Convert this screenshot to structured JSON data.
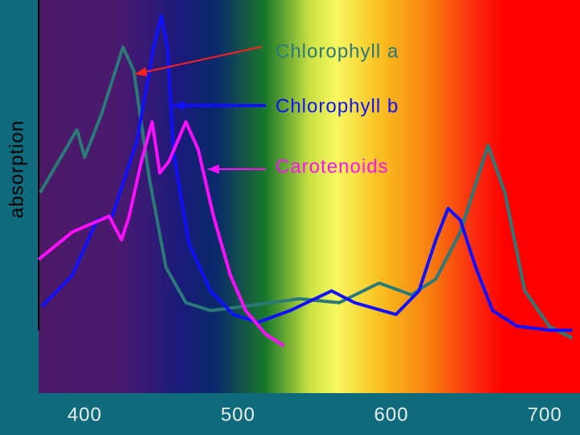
{
  "chart_data": {
    "type": "line",
    "y_label": "absorption",
    "xlim": [
      370,
      723
    ],
    "xticks": [
      400,
      500,
      600,
      700
    ],
    "ylim": [
      0,
      100
    ],
    "series": [
      {
        "name": "Chlorophyll a",
        "color": "#2b7a78",
        "x": [
          371,
          395,
          400,
          411,
          425,
          432,
          442,
          453,
          466,
          482,
          503,
          540,
          566,
          592,
          613,
          629,
          645,
          663,
          674,
          687,
          703,
          718
        ],
        "values": [
          51,
          67,
          60,
          71,
          88,
          82,
          55,
          32,
          23,
          21,
          22,
          24,
          23,
          28,
          25,
          29,
          41,
          63,
          51,
          26,
          17,
          14
        ]
      },
      {
        "name": "Chlorophyll b",
        "color": "#1010ff",
        "x": [
          372,
          392,
          408,
          418,
          434,
          445,
          450,
          454,
          458,
          468,
          482,
          497,
          513,
          534,
          561,
          576,
          603,
          618,
          629,
          637,
          645,
          655,
          666,
          682,
          703,
          718
        ],
        "values": [
          22,
          30,
          44,
          45,
          64,
          88,
          96,
          88,
          61,
          38,
          26,
          20,
          18,
          21,
          26,
          23,
          20,
          26,
          39,
          47,
          44,
          32,
          21,
          17,
          16,
          16
        ]
      },
      {
        "name": "Carotenoids",
        "color": "#ff10ff",
        "x": [
          370,
          392,
          416,
          424,
          429,
          437,
          444,
          449,
          455,
          466,
          474,
          484,
          495,
          505,
          518,
          530
        ],
        "values": [
          34,
          41,
          45,
          39,
          45,
          59,
          69,
          56,
          59,
          69,
          62,
          45,
          30,
          21,
          15,
          12
        ]
      }
    ]
  }
}
